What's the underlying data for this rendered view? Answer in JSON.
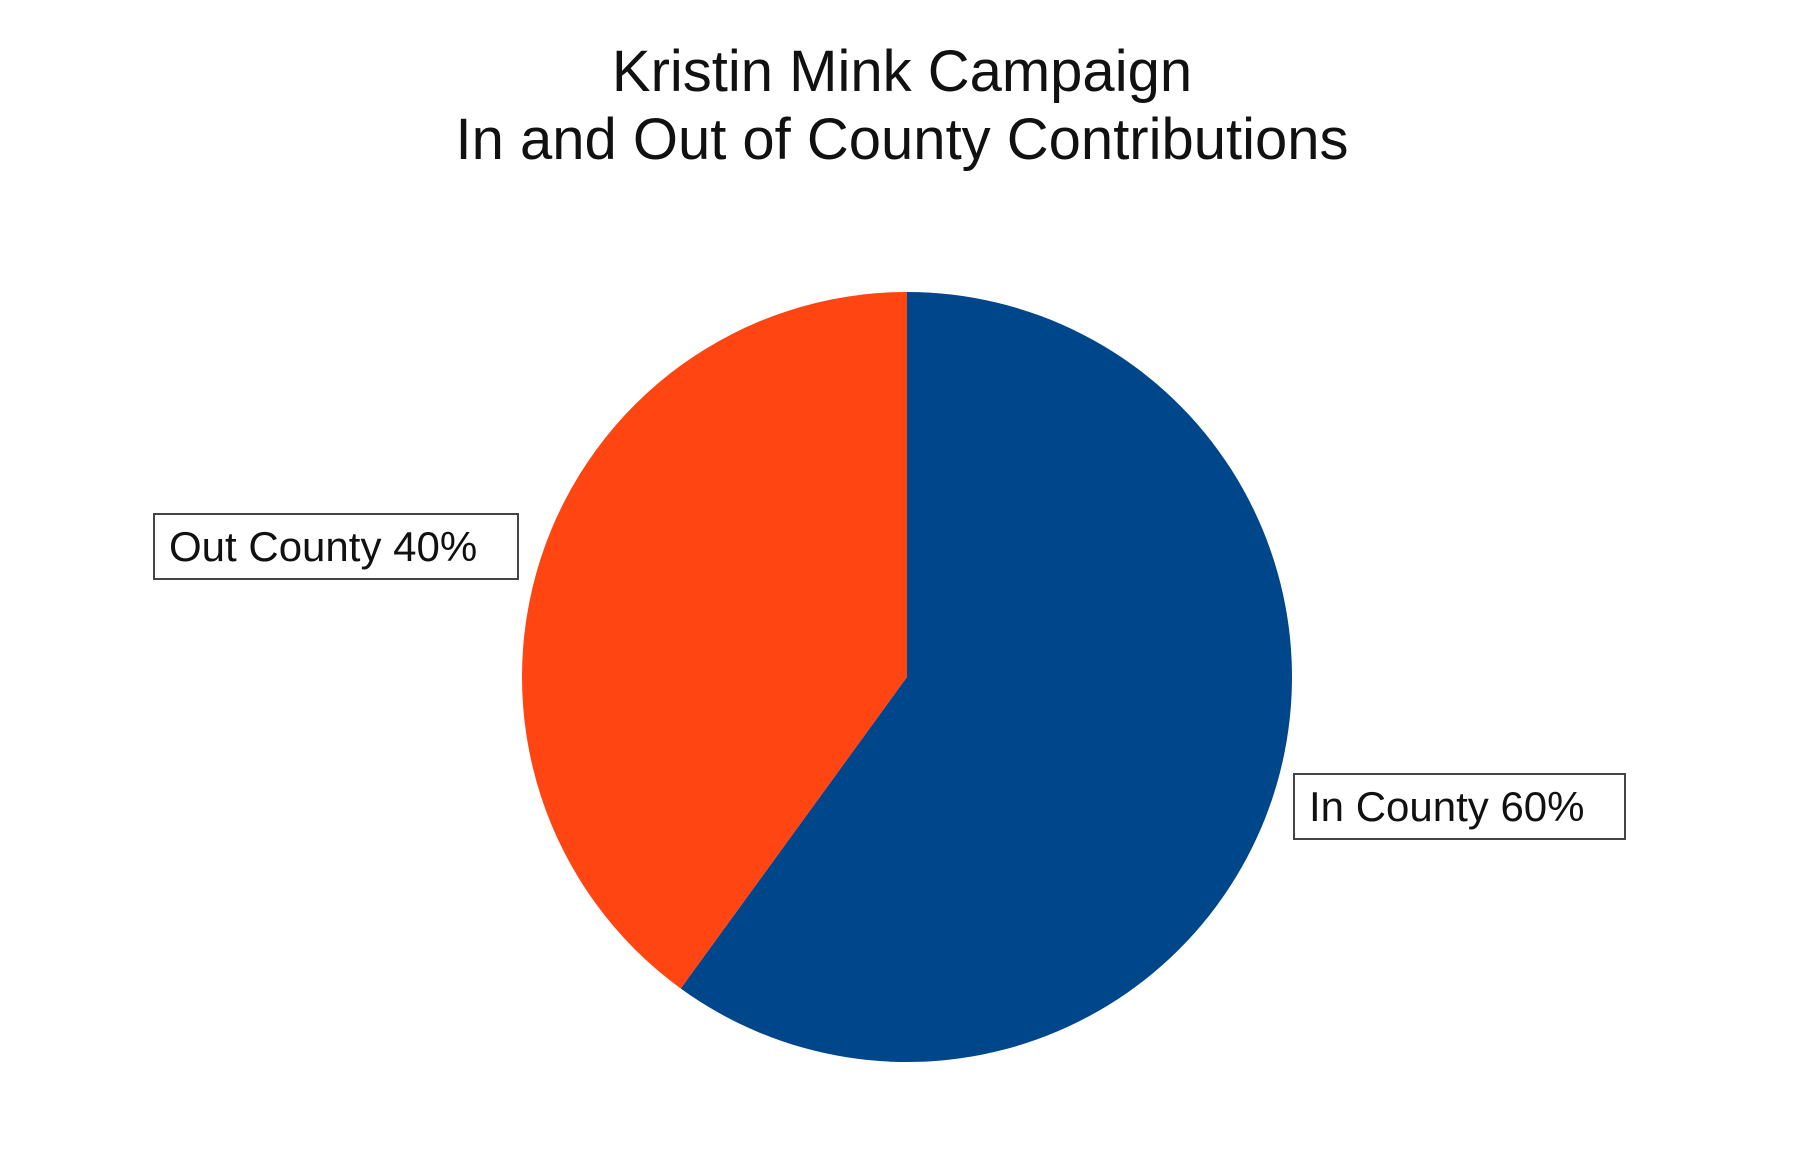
{
  "chart_data": {
    "type": "pie",
    "title": "Kristin Mink Campaign",
    "subtitle": "In and Out of County Contributions",
    "slices": [
      {
        "name": "In County",
        "value": 60,
        "label": "In County 60%",
        "color": "#00468b"
      },
      {
        "name": "Out County",
        "value": 40,
        "label": "Out County 40%",
        "color": "#ff4511"
      }
    ],
    "start_angle": "12 o'clock",
    "direction": "clockwise",
    "legend": "none"
  }
}
